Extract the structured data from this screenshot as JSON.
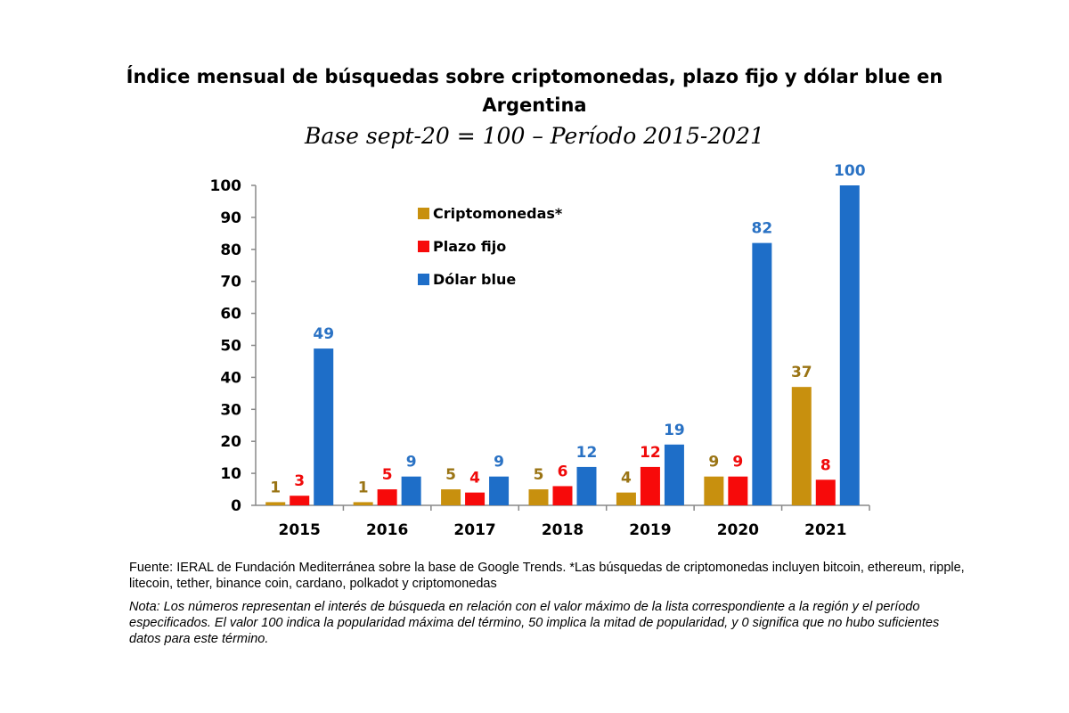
{
  "chart_data": {
    "type": "bar",
    "title": "Índice mensual de búsquedas sobre criptomonedas, plazo fijo y dólar blue en Argentina",
    "title_lines": [
      "Índice mensual de búsquedas sobre criptomonedas, plazo fijo y dólar blue en",
      "Argentina"
    ],
    "subtitle": "Base sept-20 = 100 – Período 2015-2021",
    "categories": [
      "2015",
      "2016",
      "2017",
      "2018",
      "2019",
      "2020",
      "2021"
    ],
    "series": [
      {
        "name": "Criptomonedas*",
        "color": "#C8900E",
        "label_color": "#9A7414",
        "values": [
          1,
          1,
          5,
          5,
          4,
          9,
          37
        ]
      },
      {
        "name": "Plazo fijo",
        "color": "#F70A0A",
        "label_color": "#F00A0A",
        "values": [
          3,
          5,
          4,
          6,
          12,
          9,
          8
        ]
      },
      {
        "name": "Dólar blue",
        "color": "#1E6EC8",
        "label_color": "#2A72C4",
        "values": [
          49,
          9,
          9,
          12,
          19,
          82,
          100
        ]
      }
    ],
    "ylim": [
      0,
      100
    ],
    "yticks": [
      0,
      10,
      20,
      30,
      40,
      50,
      60,
      70,
      80,
      90,
      100
    ],
    "xlabel": "",
    "ylabel": "",
    "grid": false,
    "legend_position": "top-left-inside",
    "data_labels": true
  },
  "notes": {
    "fuente": "Fuente: IERAL de Fundación Mediterránea sobre la base de Google Trends. *Las búsquedas de criptomonedas incluyen bitcoin, ethereum, ripple, litecoin, tether, binance coin, cardano, polkadot y criptomonedas",
    "nota": "Nota: Los números representan el interés de búsqueda en relación con el valor máximo de la lista correspondiente a la región y el período especificados. El valor 100 indica la popularidad máxima del término, 50 implica la mitad de popularidad, y 0 significa que no hubo suficientes datos para este término."
  }
}
